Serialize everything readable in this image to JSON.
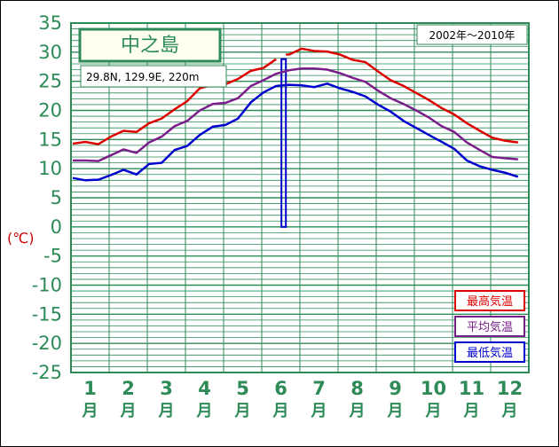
{
  "chart_data": {
    "type": "line",
    "title": "中之島",
    "location": "29.8N,  129.9E,  220m",
    "period": "2002年〜2010年",
    "ylabel": "(℃)",
    "ylim": [
      -25,
      35
    ],
    "yticks": [
      35,
      30,
      25,
      20,
      15,
      10,
      5,
      0,
      -5,
      -10,
      -15,
      -20,
      -25
    ],
    "months": [
      "1",
      "2",
      "3",
      "4",
      "5",
      "6",
      "7",
      "8",
      "9",
      "10",
      "11",
      "12"
    ],
    "month_suffix": "月",
    "grid": true,
    "legend_position": "bottom-right",
    "x": [
      1,
      1.33,
      1.67,
      2,
      2.33,
      2.67,
      3,
      3.33,
      3.67,
      4,
      4.33,
      4.67,
      5,
      5.33,
      5.67,
      6,
      6.33,
      6.67,
      7,
      7.33,
      7.67,
      8,
      8.33,
      8.67,
      9,
      9.33,
      9.67,
      10,
      10.33,
      10.67,
      11,
      11.33,
      11.67,
      12,
      12.33,
      12.67
    ],
    "series": [
      {
        "name": "最高気温",
        "color": "#dd0000",
        "values": [
          14.3,
          14.6,
          14.2,
          15.5,
          16.5,
          16.3,
          17.8,
          18.6,
          20.2,
          21.6,
          23.8,
          24.4,
          24.5,
          25.4,
          26.8,
          27.3,
          28.8,
          29.6,
          30.6,
          30.2,
          30.1,
          29.6,
          28.7,
          28.3,
          26.7,
          25.2,
          24.2,
          23.0,
          21.8,
          20.4,
          19.3,
          17.8,
          16.5,
          15.3,
          14.8,
          14.5
        ],
        "anomaly_month_index": 16,
        "anomaly_value": 0
      },
      {
        "name": "平均気温",
        "color": "#7a1f8a",
        "values": [
          11.4,
          11.4,
          11.3,
          12.3,
          13.3,
          12.7,
          14.5,
          15.5,
          17.3,
          18.2,
          20.0,
          21.1,
          21.3,
          22.1,
          24.2,
          25.2,
          26.3,
          26.9,
          27.2,
          27.2,
          27.0,
          26.4,
          25.6,
          24.9,
          23.4,
          22.1,
          21.1,
          20.0,
          18.8,
          17.3,
          16.3,
          14.5,
          13.2,
          12.0,
          11.8,
          11.6
        ]
      },
      {
        "name": "最低気温",
        "color": "#0000cc",
        "values": [
          8.4,
          8.0,
          8.1,
          8.9,
          9.8,
          9.0,
          10.8,
          11.0,
          13.2,
          13.9,
          15.8,
          17.2,
          17.5,
          18.6,
          21.4,
          23.1,
          24.2,
          24.4,
          24.3,
          24.0,
          24.6,
          23.8,
          23.2,
          22.4,
          21.0,
          19.8,
          18.2,
          17.0,
          15.8,
          14.6,
          13.4,
          11.4,
          10.4,
          9.8,
          9.3,
          8.6
        ]
      }
    ]
  }
}
